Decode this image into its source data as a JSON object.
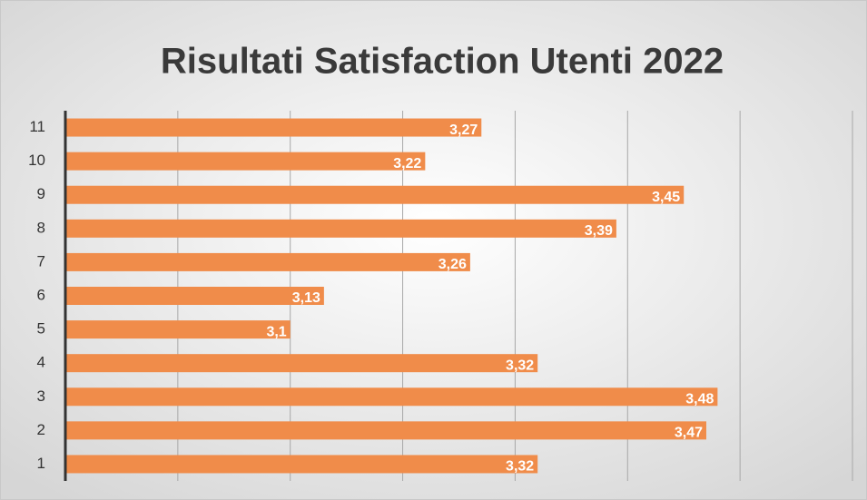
{
  "chart_data": {
    "type": "bar",
    "orientation": "horizontal",
    "title": "Risultati Satisfaction Utenti 2022",
    "categories": [
      "1",
      "2",
      "3",
      "4",
      "5",
      "6",
      "7",
      "8",
      "9",
      "10",
      "11"
    ],
    "values": [
      3.32,
      3.47,
      3.48,
      3.32,
      3.1,
      3.13,
      3.26,
      3.39,
      3.45,
      3.22,
      3.27
    ],
    "value_labels": [
      "3,32",
      "3,47",
      "3,48",
      "3,32",
      "3,1",
      "3,13",
      "3,26",
      "3,39",
      "3,45",
      "3,22",
      "3,27"
    ],
    "color": "#f08c4a",
    "xlim": [
      2.9,
      3.6
    ],
    "xticks": [
      2.9,
      3.0,
      3.1,
      3.2,
      3.3,
      3.4,
      3.5,
      3.6
    ],
    "grid": true
  }
}
